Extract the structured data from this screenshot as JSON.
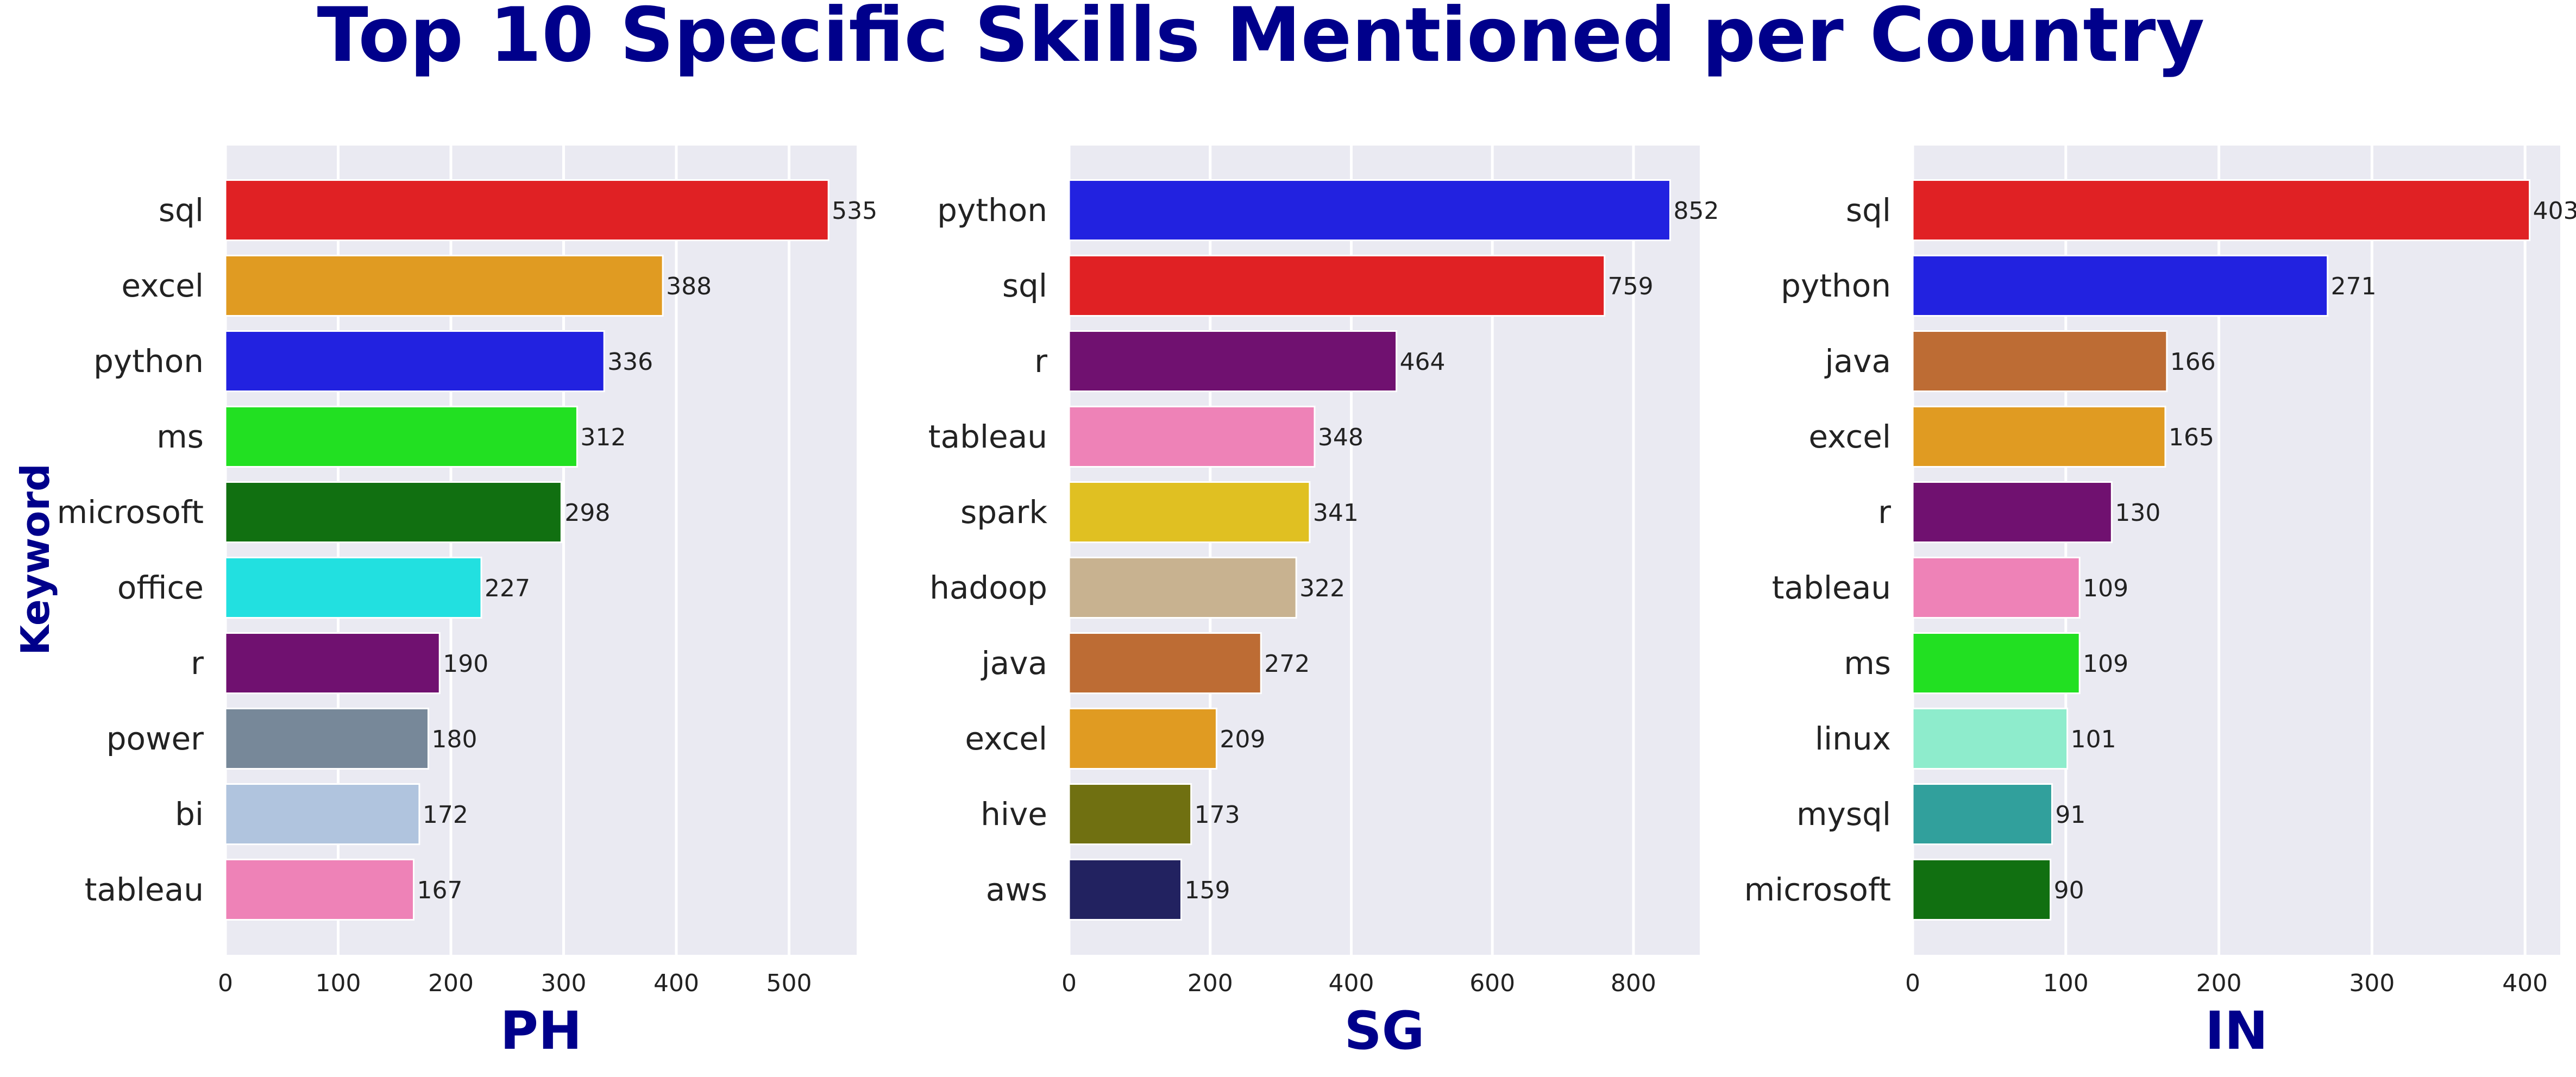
{
  "title": "Top 10 Specific Skills Mentioned per Country",
  "y_axis_label": "Keyword",
  "chart_data": [
    {
      "type": "bar",
      "orientation": "horizontal",
      "xlabel": "PH",
      "ylabel": "Keyword",
      "xlim": [
        0,
        560
      ],
      "xticks": [
        0,
        100,
        200,
        300,
        400,
        500
      ],
      "grid": true,
      "categories": [
        "sql",
        "excel",
        "python",
        "ms",
        "microsoft",
        "office",
        "r",
        "power",
        "bi",
        "tableau"
      ],
      "values": [
        535,
        388,
        336,
        312,
        298,
        227,
        190,
        180,
        172,
        167
      ],
      "colors": [
        "#e02124",
        "#e09b22",
        "#2222e0",
        "#22e022",
        "#117011",
        "#22e0e0",
        "#701170",
        "#778899",
        "#b0c4de",
        "#ee82b7"
      ]
    },
    {
      "type": "bar",
      "orientation": "horizontal",
      "xlabel": "SG",
      "ylabel": "",
      "xlim": [
        0,
        894
      ],
      "xticks": [
        0,
        200,
        400,
        600,
        800
      ],
      "grid": true,
      "categories": [
        "python",
        "sql",
        "r",
        "tableau",
        "spark",
        "hadoop",
        "java",
        "excel",
        "hive",
        "aws"
      ],
      "values": [
        852,
        759,
        464,
        348,
        341,
        322,
        272,
        209,
        173,
        159
      ],
      "colors": [
        "#2222e0",
        "#e02124",
        "#701170",
        "#ee82b7",
        "#e0c022",
        "#c8b290",
        "#bd6c34",
        "#e09b22",
        "#707011",
        "#222260"
      ]
    },
    {
      "type": "bar",
      "orientation": "horizontal",
      "xlabel": "IN",
      "ylabel": "",
      "xlim": [
        0,
        423
      ],
      "xticks": [
        0,
        100,
        200,
        300,
        400
      ],
      "grid": true,
      "categories": [
        "sql",
        "python",
        "java",
        "excel",
        "r",
        "tableau",
        "ms",
        "linux",
        "mysql",
        "microsoft"
      ],
      "values": [
        403,
        271,
        166,
        165,
        130,
        109,
        109,
        101,
        91,
        90
      ],
      "colors": [
        "#e02124",
        "#2222e0",
        "#bd6c34",
        "#e09b22",
        "#701170",
        "#ee82b7",
        "#22e022",
        "#8eeccc",
        "#31a09c",
        "#117011"
      ]
    }
  ]
}
